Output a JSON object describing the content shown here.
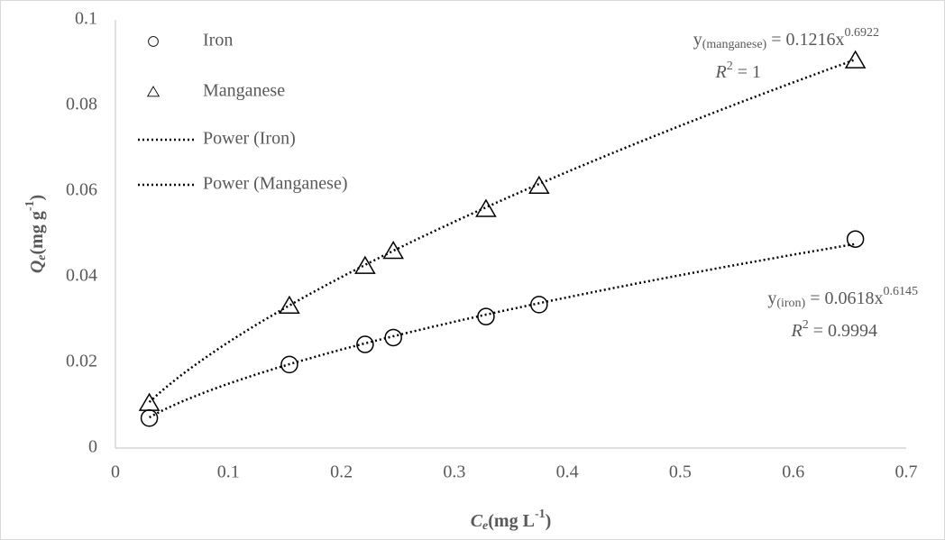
{
  "chart_data": {
    "type": "scatter",
    "x_label": {
      "main": "C",
      "sub": "e",
      "unit": "(mg L",
      "sup": "-1",
      "close": ")"
    },
    "y_label": {
      "main": "Q",
      "sub": "e",
      "unit": "(mg g",
      "sup": "-1",
      "close": ")"
    },
    "xlim": [
      0,
      0.7
    ],
    "xticks": [
      0,
      0.1,
      0.2,
      0.3,
      0.4,
      0.5,
      0.6,
      0.7
    ],
    "ylim": [
      0,
      0.1
    ],
    "yticks": [
      0,
      0.02,
      0.04,
      0.06,
      0.08,
      0.1
    ],
    "series": [
      {
        "name": "Iron",
        "marker": "circle",
        "color": "#000000",
        "x": [
          0.03,
          0.154,
          0.221,
          0.246,
          0.328,
          0.375,
          0.655
        ],
        "values": [
          0.007,
          0.0195,
          0.0242,
          0.0258,
          0.0307,
          0.0335,
          0.0488
        ],
        "trendline": {
          "name": "Power (Iron)",
          "coef": 0.0618,
          "exponent": 0.6145,
          "r2": 0.9994,
          "y": "y",
          "sub": "(iron)",
          "eq": " = ",
          "var": "x",
          "r2_symbol": "R",
          "r2_sup": "2"
        }
      },
      {
        "name": "Manganese",
        "marker": "triangle",
        "color": "#000000",
        "x": [
          0.03,
          0.154,
          0.221,
          0.246,
          0.328,
          0.375,
          0.655
        ],
        "values": [
          0.0105,
          0.0332,
          0.0425,
          0.046,
          0.0558,
          0.0612,
          0.0905
        ],
        "trendline": {
          "name": "Power (Manganese)",
          "coef": 0.1216,
          "exponent": 0.6922,
          "r2": 1,
          "y": "y",
          "sub": "(manganese)",
          "eq": " = ",
          "var": "x",
          "r2_symbol": "R",
          "r2_sup": "2"
        }
      }
    ]
  }
}
